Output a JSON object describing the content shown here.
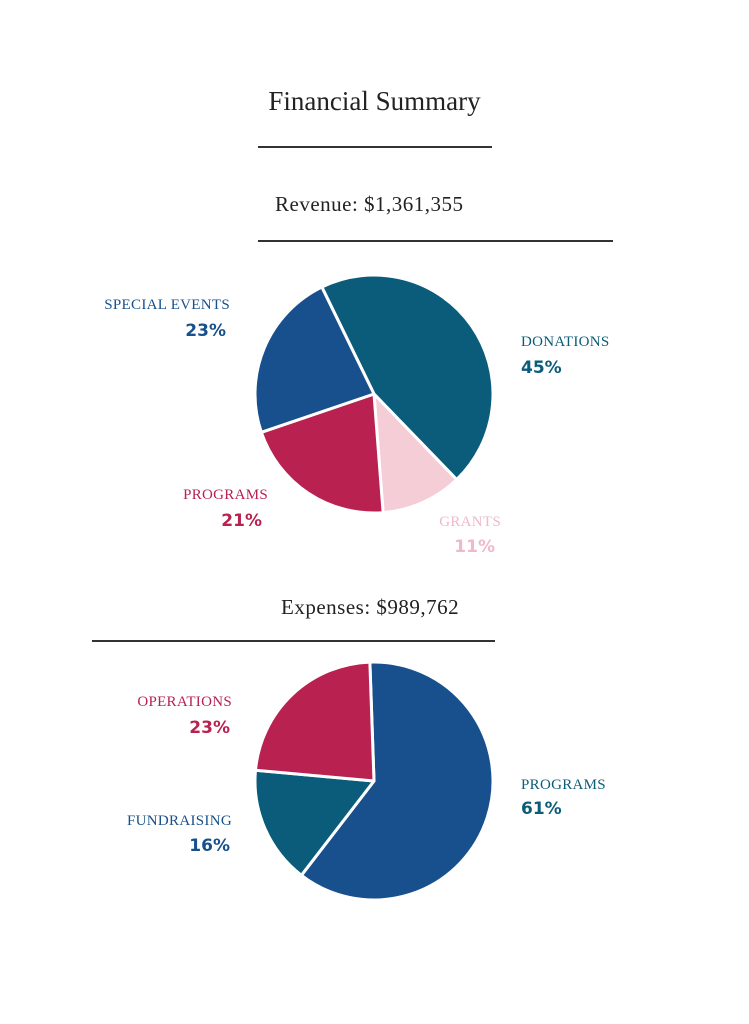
{
  "title": "Financial Summary",
  "colors": {
    "teal": "#0b5c7a",
    "blue": "#17508c",
    "crimson": "#b82150",
    "pink": "#f5cdd6"
  },
  "chart_data": [
    {
      "type": "pie",
      "title": "Revenue: $1,361,355",
      "start_angle_deg": -26,
      "slices": [
        {
          "label": "DONATIONS",
          "value": 45,
          "pct_label": "45%",
          "color": "#0b5c7a",
          "label_color": "#0b5c7a"
        },
        {
          "label": "GRANTS",
          "value": 11,
          "pct_label": "11%",
          "color": "#f5cdd6",
          "label_color": "#f0b8c8"
        },
        {
          "label": "PROGRAMS",
          "value": 21,
          "pct_label": "21%",
          "color": "#b82150",
          "label_color": "#b82150"
        },
        {
          "label": "SPECIAL EVENTS",
          "value": 23,
          "pct_label": "23%",
          "color": "#17508c",
          "label_color": "#17508c"
        }
      ]
    },
    {
      "type": "pie",
      "title": "Expenses: $989,762",
      "start_angle_deg": -2,
      "slices": [
        {
          "label": "PROGRAMS",
          "value": 61,
          "pct_label": "61%",
          "color": "#17508c",
          "label_color": "#0b5c7a"
        },
        {
          "label": "FUNDRAISING",
          "value": 16,
          "pct_label": "16%",
          "color": "#0b5c7a",
          "label_color": "#17508c"
        },
        {
          "label": "OPERATIONS",
          "value": 23,
          "pct_label": "23%",
          "color": "#b82150",
          "label_color": "#b82150"
        }
      ]
    }
  ]
}
